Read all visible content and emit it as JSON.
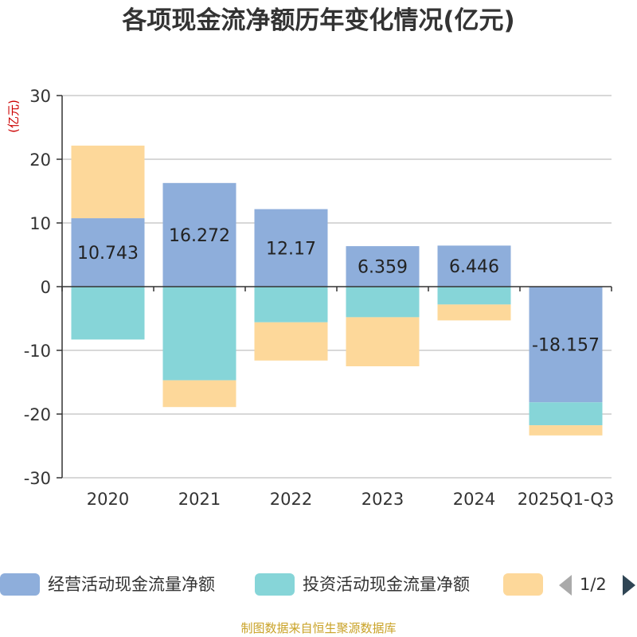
{
  "chart_data": {
    "type": "bar",
    "stacked": true,
    "title": "各项现金流净额历年变化情况(亿元)",
    "ylabel": "(亿元)",
    "ylim": [
      -30,
      30
    ],
    "yticks": [
      30,
      20,
      10,
      0,
      -10,
      -20,
      -30
    ],
    "categories": [
      "2020",
      "2021",
      "2022",
      "2023",
      "2024",
      "2025Q1-Q3"
    ],
    "series": [
      {
        "name": "经营活动现金流量净额",
        "color": "#8eaedb",
        "values": [
          10.743,
          16.272,
          12.17,
          6.359,
          6.446,
          -18.157
        ],
        "data_labels": [
          "10.743",
          "16.272",
          "12.17",
          "6.359",
          "6.446",
          "-18.157"
        ]
      },
      {
        "name": "投资活动现金流量净额",
        "color": "#86d5d8",
        "values": [
          -8.3,
          -14.7,
          -5.6,
          -4.8,
          -2.8,
          -3.6
        ]
      },
      {
        "name": "",
        "color": "#fdd89a",
        "values": [
          11.4,
          -4.2,
          -6.0,
          -7.7,
          -2.5,
          -1.6
        ]
      }
    ],
    "legend": {
      "position": "bottom",
      "page": "1/2"
    }
  },
  "source_note": "制图数据来自恒生聚源数据库",
  "colors": {
    "title": "#333333",
    "axis_label": "#cc0000",
    "grid": "#cccccc",
    "axis": "#333333",
    "source": "#c9a227"
  }
}
